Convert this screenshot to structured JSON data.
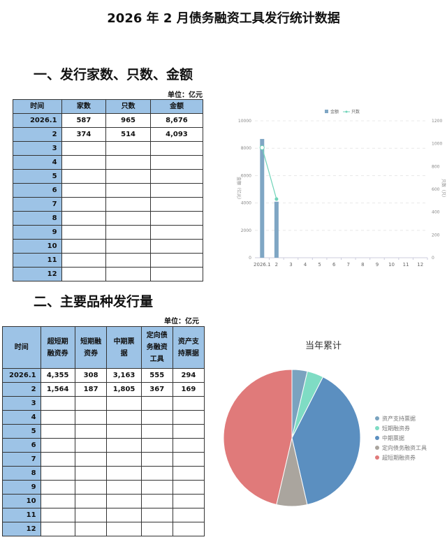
{
  "title": "2026 年 2 月债务融资工具发行统计数据",
  "section1": {
    "heading": "一、发行家数、只数、金额",
    "unit": "单位：亿元",
    "columns": [
      "时间",
      "家数",
      "只数",
      "金额"
    ],
    "rows": [
      [
        "2026.1",
        "587",
        "965",
        "8,676"
      ],
      [
        "2",
        "374",
        "514",
        "4,093"
      ],
      [
        "3",
        "",
        "",
        ""
      ],
      [
        "4",
        "",
        "",
        ""
      ],
      [
        "5",
        "",
        "",
        ""
      ],
      [
        "6",
        "",
        "",
        ""
      ],
      [
        "7",
        "",
        "",
        ""
      ],
      [
        "8",
        "",
        "",
        ""
      ],
      [
        "9",
        "",
        "",
        ""
      ],
      [
        "10",
        "",
        "",
        ""
      ],
      [
        "11",
        "",
        "",
        ""
      ],
      [
        "12",
        "",
        "",
        ""
      ]
    ]
  },
  "section2": {
    "heading": "二、主要品种发行量",
    "unit": "单位：亿元",
    "columns": [
      "时间",
      "超短期融资券",
      "短期融资券",
      "中期票据",
      "定向债务融资工具",
      "资产支持票据"
    ],
    "rows": [
      [
        "2026.1",
        "4,355",
        "308",
        "3,163",
        "555",
        "294"
      ],
      [
        "2",
        "1,564",
        "187",
        "1,805",
        "367",
        "169"
      ],
      [
        "3",
        "",
        "",
        "",
        "",
        ""
      ],
      [
        "4",
        "",
        "",
        "",
        "",
        ""
      ],
      [
        "5",
        "",
        "",
        "",
        "",
        ""
      ],
      [
        "6",
        "",
        "",
        "",
        "",
        ""
      ],
      [
        "7",
        "",
        "",
        "",
        "",
        ""
      ],
      [
        "8",
        "",
        "",
        "",
        "",
        ""
      ],
      [
        "9",
        "",
        "",
        "",
        "",
        ""
      ],
      [
        "10",
        "",
        "",
        "",
        "",
        ""
      ],
      [
        "11",
        "",
        "",
        "",
        "",
        ""
      ],
      [
        "12",
        "",
        "",
        "",
        "",
        ""
      ]
    ]
  },
  "chart_data": [
    {
      "type": "bar",
      "categories": [
        "2026.1",
        "2",
        "3",
        "4",
        "5",
        "6",
        "7",
        "8",
        "9",
        "10",
        "11",
        "12"
      ],
      "series": [
        {
          "name": "金额",
          "type": "bar",
          "axis": "left",
          "values": [
            8676,
            4093,
            null,
            null,
            null,
            null,
            null,
            null,
            null,
            null,
            null,
            null
          ],
          "color": "#7fa6c4"
        },
        {
          "name": "只数",
          "type": "line",
          "axis": "right",
          "values": [
            965,
            514,
            null,
            null,
            null,
            null,
            null,
            null,
            null,
            null,
            null,
            null
          ],
          "color": "#6fd3b8"
        }
      ],
      "ylabel": "金额（亿元）",
      "y2label": "只数（只）",
      "ylim": [
        0,
        10000
      ],
      "y2lim": [
        0,
        1200
      ],
      "yticks": [
        0,
        2000,
        4000,
        6000,
        8000,
        10000
      ],
      "y2ticks": [
        0,
        200,
        400,
        600,
        800,
        1000,
        1200
      ],
      "grid": true,
      "legend": "top"
    },
    {
      "type": "pie",
      "title": "当年累计",
      "legend": "right",
      "slices": [
        {
          "name": "资产支持票据",
          "value": 463,
          "color": "#7aa3bf"
        },
        {
          "name": "短期融资券",
          "value": 495,
          "color": "#7fdcc4"
        },
        {
          "name": "中期票据",
          "value": 4968,
          "color": "#5b8fc0"
        },
        {
          "name": "定向债务融资工具",
          "value": 922,
          "color": "#aaa59e"
        },
        {
          "name": "超短期融资券",
          "value": 5919,
          "color": "#e07a7a"
        }
      ]
    }
  ]
}
